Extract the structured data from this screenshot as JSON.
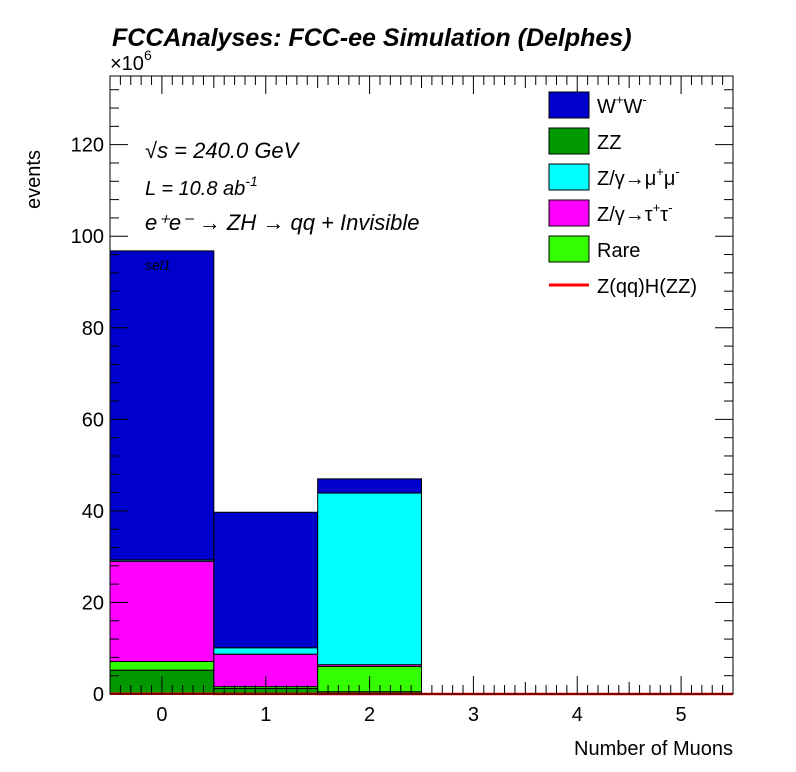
{
  "chart_data": {
    "type": "bar",
    "stacked": true,
    "title": "FCCAnalyses: FCC-ee Simulation (Delphes)",
    "xlabel": "Number of Muons",
    "ylabel": "events",
    "y_multiplier": "×10",
    "y_multiplier_exp": "6",
    "categories": [
      "0",
      "1",
      "2",
      "3",
      "4",
      "5"
    ],
    "xlim": [
      -0.5,
      5.5
    ],
    "ylim": [
      0,
      135
    ],
    "yticks": [
      "0",
      "20",
      "40",
      "60",
      "80",
      "100",
      "120"
    ],
    "series": [
      {
        "name": "ZZ",
        "color": "#009900",
        "values": [
          5.2,
          1.2,
          0.5,
          0,
          0,
          0
        ]
      },
      {
        "name": "Rare",
        "color": "#33ff00",
        "values": [
          1.9,
          0.4,
          5.5,
          0,
          0,
          0
        ]
      },
      {
        "name": "Z/γ→τ⁺τ⁻",
        "color": "#ff00ff",
        "values": [
          21.9,
          7.1,
          0.4,
          0,
          0,
          0
        ]
      },
      {
        "name": "Z/γ→μ⁺μ⁻",
        "color": "#00ffff",
        "values": [
          0.3,
          1.4,
          37.5,
          0,
          0,
          0
        ]
      },
      {
        "name": "W⁺W⁻",
        "color": "#0000cc",
        "values": [
          67.5,
          29.6,
          3.1,
          0,
          0,
          0
        ]
      }
    ],
    "signal": {
      "name": "Z(qq)H(ZZ)",
      "color": "#ff0000",
      "values": [
        0.05,
        0.02,
        0.01,
        0,
        0,
        0
      ]
    },
    "legend_position": "top-right",
    "annotations": {
      "sqrts": "√s = 240.0 GeV",
      "lumi": "L = 10.8 ab",
      "lumi_exp": "-1",
      "process": "e⁺e⁻ → ZH → qq + Invisible",
      "selection": "sel1"
    }
  },
  "legend": [
    {
      "label": "W",
      "sup1": "+",
      "mid": "W",
      "sup2": "-",
      "color": "#0000cc",
      "kind": "box"
    },
    {
      "label": "ZZ",
      "color": "#009900",
      "kind": "box"
    },
    {
      "label": "Z/γ→μ",
      "sup1": "+",
      "mid": "μ",
      "sup2": "-",
      "color": "#00ffff",
      "kind": "box"
    },
    {
      "label": "Z/γ→τ",
      "sup1": "+",
      "mid": "τ",
      "sup2": "-",
      "color": "#ff00ff",
      "kind": "box"
    },
    {
      "label": "Rare",
      "color": "#33ff00",
      "kind": "box"
    },
    {
      "label": "Z(qq)H(ZZ)",
      "color": "#ff0000",
      "kind": "line"
    }
  ]
}
